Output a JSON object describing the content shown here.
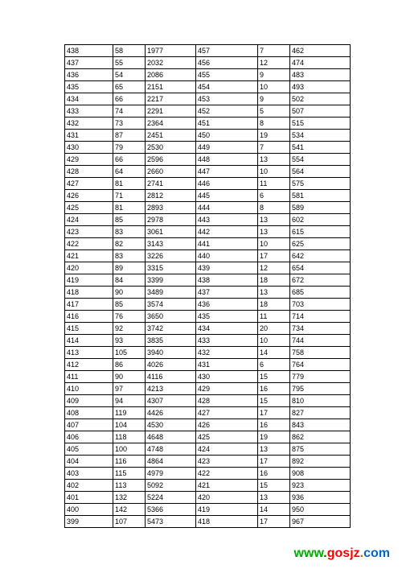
{
  "table": {
    "rows": [
      [
        "438",
        "58",
        "1977",
        "457",
        "7",
        "462"
      ],
      [
        "437",
        "55",
        "2032",
        "456",
        "12",
        "474"
      ],
      [
        "436",
        "54",
        "2086",
        "455",
        "9",
        "483"
      ],
      [
        "435",
        "65",
        "2151",
        "454",
        "10",
        "493"
      ],
      [
        "434",
        "66",
        "2217",
        "453",
        "9",
        "502"
      ],
      [
        "433",
        "74",
        "2291",
        "452",
        "5",
        "507"
      ],
      [
        "432",
        "73",
        "2364",
        "451",
        "8",
        "515"
      ],
      [
        "431",
        "87",
        "2451",
        "450",
        "19",
        "534"
      ],
      [
        "430",
        "79",
        "2530",
        "449",
        "7",
        "541"
      ],
      [
        "429",
        "66",
        "2596",
        "448",
        "13",
        "554"
      ],
      [
        "428",
        "64",
        "2660",
        "447",
        "10",
        "564"
      ],
      [
        "427",
        "81",
        "2741",
        "446",
        "11",
        "575"
      ],
      [
        "426",
        "71",
        "2812",
        "445",
        "6",
        "581"
      ],
      [
        "425",
        "81",
        "2893",
        "444",
        "8",
        "589"
      ],
      [
        "424",
        "85",
        "2978",
        "443",
        "13",
        "602"
      ],
      [
        "423",
        "83",
        "3061",
        "442",
        "13",
        "615"
      ],
      [
        "422",
        "82",
        "3143",
        "441",
        "10",
        "625"
      ],
      [
        "421",
        "83",
        "3226",
        "440",
        "17",
        "642"
      ],
      [
        "420",
        "89",
        "3315",
        "439",
        "12",
        "654"
      ],
      [
        "419",
        "84",
        "3399",
        "438",
        "18",
        "672"
      ],
      [
        "418",
        "90",
        "3489",
        "437",
        "13",
        "685"
      ],
      [
        "417",
        "85",
        "3574",
        "436",
        "18",
        "703"
      ],
      [
        "416",
        "76",
        "3650",
        "435",
        "11",
        "714"
      ],
      [
        "415",
        "92",
        "3742",
        "434",
        "20",
        "734"
      ],
      [
        "414",
        "93",
        "3835",
        "433",
        "10",
        "744"
      ],
      [
        "413",
        "105",
        "3940",
        "432",
        "14",
        "758"
      ],
      [
        "412",
        "86",
        "4026",
        "431",
        "6",
        "764"
      ],
      [
        "411",
        "90",
        "4116",
        "430",
        "15",
        "779"
      ],
      [
        "410",
        "97",
        "4213",
        "429",
        "16",
        "795"
      ],
      [
        "409",
        "94",
        "4307",
        "428",
        "15",
        "810"
      ],
      [
        "408",
        "119",
        "4426",
        "427",
        "17",
        "827"
      ],
      [
        "407",
        "104",
        "4530",
        "426",
        "16",
        "843"
      ],
      [
        "406",
        "118",
        "4648",
        "425",
        "19",
        "862"
      ],
      [
        "405",
        "100",
        "4748",
        "424",
        "13",
        "875"
      ],
      [
        "404",
        "116",
        "4864",
        "423",
        "17",
        "892"
      ],
      [
        "403",
        "115",
        "4979",
        "422",
        "16",
        "908"
      ],
      [
        "402",
        "113",
        "5092",
        "421",
        "15",
        "923"
      ],
      [
        "401",
        "132",
        "5224",
        "420",
        "13",
        "936"
      ],
      [
        "400",
        "142",
        "5366",
        "419",
        "14",
        "950"
      ],
      [
        "399",
        "107",
        "5473",
        "418",
        "17",
        "967"
      ]
    ]
  },
  "watermark": {
    "text_www": "www",
    "text_dot1": ".",
    "text_gosjz": "gosjz",
    "text_dot2": ".",
    "text_com": "com"
  }
}
